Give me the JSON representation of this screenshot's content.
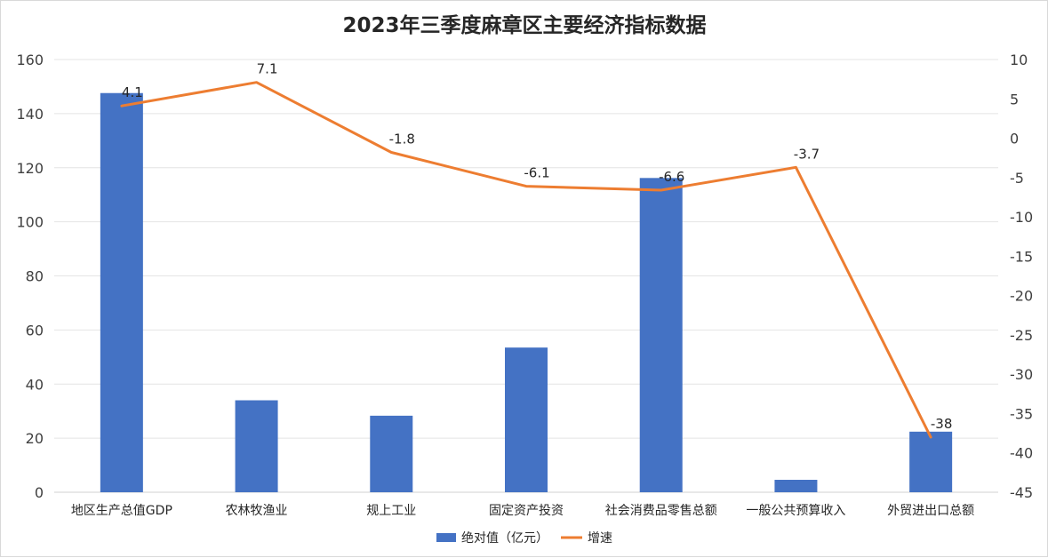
{
  "chart_data": {
    "type": "bar+line",
    "title": "2023年三季度麻章区主要经济指标数据",
    "categories": [
      "地区生产总值GDP",
      "农林牧渔业",
      "规上工业",
      "固定资产投资",
      "社会消费品零售总额",
      "一般公共预算收入",
      "外贸进出口总额"
    ],
    "series": [
      {
        "name": "绝对值（亿元）",
        "type": "bar",
        "axis": "left",
        "color": "#4472C4",
        "values": [
          147.6,
          34,
          28.3,
          53.5,
          116.2,
          4.6,
          22.4
        ]
      },
      {
        "name": "增速",
        "type": "line",
        "axis": "right",
        "color": "#ED7D31",
        "values": [
          4.1,
          7.1,
          -1.8,
          -6.1,
          -6.6,
          -3.7,
          -38
        ],
        "labels": [
          "4.1",
          "7.1",
          "-1.8",
          "-6.1",
          "-6.6",
          "-3.7",
          "-38"
        ]
      }
    ],
    "y_left": {
      "min": 0,
      "max": 160,
      "ticks": [
        "0",
        "20",
        "40",
        "60",
        "80",
        "100",
        "120",
        "140",
        "160"
      ]
    },
    "y_right": {
      "min": -45,
      "max": 10,
      "ticks": [
        "-45",
        "-40",
        "-35",
        "-30",
        "-25",
        "-20",
        "-15",
        "-10",
        "-5",
        "0",
        "5",
        "10"
      ]
    },
    "grid": true,
    "legend": "bottom"
  }
}
